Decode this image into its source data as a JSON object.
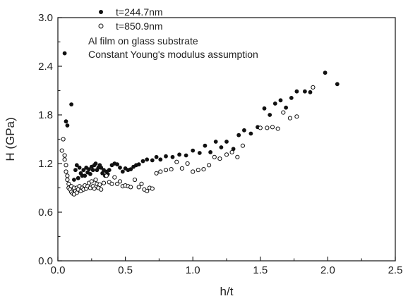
{
  "chart_data": {
    "type": "scatter",
    "xlabel": "h/t",
    "ylabel": "H (GPa)",
    "xlim": [
      0.0,
      2.5
    ],
    "ylim": [
      0.0,
      3.0
    ],
    "x_ticks": [
      "0.0",
      "0.5",
      "1.0",
      "1.5",
      "2.0",
      "2.5"
    ],
    "y_ticks": [
      "0.0",
      "0.6",
      "1.2",
      "1.8",
      "2.4",
      "3.0"
    ],
    "grid": false,
    "legend_position": "top-left",
    "annotations": [
      "Al film on glass substrate",
      "Constant Young's modulus assumption"
    ],
    "series": [
      {
        "name": "t=244.7nm",
        "marker": "filled-circle",
        "color": "#111111",
        "points": [
          [
            0.05,
            2.56
          ],
          [
            0.06,
            1.72
          ],
          [
            0.07,
            1.67
          ],
          [
            0.1,
            1.93
          ],
          [
            0.12,
            1.0
          ],
          [
            0.13,
            1.12
          ],
          [
            0.14,
            1.18
          ],
          [
            0.15,
            1.02
          ],
          [
            0.16,
            1.15
          ],
          [
            0.17,
            1.08
          ],
          [
            0.18,
            1.05
          ],
          [
            0.19,
            1.12
          ],
          [
            0.2,
            1.05
          ],
          [
            0.21,
            1.15
          ],
          [
            0.22,
            1.09
          ],
          [
            0.23,
            1.13
          ],
          [
            0.24,
            1.07
          ],
          [
            0.25,
            1.16
          ],
          [
            0.26,
            1.12
          ],
          [
            0.27,
            1.18
          ],
          [
            0.28,
            1.2
          ],
          [
            0.29,
            1.12
          ],
          [
            0.3,
            1.15
          ],
          [
            0.31,
            1.18
          ],
          [
            0.32,
            1.15
          ],
          [
            0.33,
            1.08
          ],
          [
            0.34,
            1.12
          ],
          [
            0.35,
            1.05
          ],
          [
            0.36,
            1.1
          ],
          [
            0.37,
            1.07
          ],
          [
            0.38,
            1.12
          ],
          [
            0.4,
            1.18
          ],
          [
            0.42,
            1.2
          ],
          [
            0.44,
            1.19
          ],
          [
            0.46,
            1.15
          ],
          [
            0.48,
            1.1
          ],
          [
            0.5,
            1.14
          ],
          [
            0.52,
            1.12
          ],
          [
            0.54,
            1.13
          ],
          [
            0.56,
            1.16
          ],
          [
            0.58,
            1.18
          ],
          [
            0.6,
            1.19
          ],
          [
            0.63,
            1.23
          ],
          [
            0.66,
            1.25
          ],
          [
            0.7,
            1.24
          ],
          [
            0.73,
            1.28
          ],
          [
            0.76,
            1.25
          ],
          [
            0.8,
            1.29
          ],
          [
            0.85,
            1.28
          ],
          [
            0.9,
            1.31
          ],
          [
            0.95,
            1.3
          ],
          [
            1.0,
            1.36
          ],
          [
            1.05,
            1.33
          ],
          [
            1.09,
            1.42
          ],
          [
            1.13,
            1.34
          ],
          [
            1.17,
            1.47
          ],
          [
            1.21,
            1.4
          ],
          [
            1.25,
            1.47
          ],
          [
            1.3,
            1.38
          ],
          [
            1.34,
            1.55
          ],
          [
            1.38,
            1.61
          ],
          [
            1.43,
            1.57
          ],
          [
            1.48,
            1.65
          ],
          [
            1.53,
            1.88
          ],
          [
            1.57,
            1.8
          ],
          [
            1.61,
            1.94
          ],
          [
            1.65,
            1.98
          ],
          [
            1.69,
            1.89
          ],
          [
            1.73,
            2.01
          ],
          [
            1.77,
            2.09
          ],
          [
            1.83,
            2.09
          ],
          [
            1.87,
            2.08
          ],
          [
            1.98,
            2.32
          ],
          [
            2.07,
            2.18
          ]
        ]
      },
      {
        "name": "t=850.9nm",
        "marker": "open-circle",
        "color": "#111111",
        "points": [
          [
            0.03,
            1.36
          ],
          [
            0.04,
            1.5
          ],
          [
            0.05,
            1.3
          ],
          [
            0.05,
            1.25
          ],
          [
            0.06,
            1.18
          ],
          [
            0.06,
            1.1
          ],
          [
            0.07,
            1.05
          ],
          [
            0.07,
            1.0
          ],
          [
            0.08,
            0.95
          ],
          [
            0.08,
            0.9
          ],
          [
            0.09,
            0.88
          ],
          [
            0.1,
            0.92
          ],
          [
            0.1,
            0.85
          ],
          [
            0.11,
            0.83
          ],
          [
            0.12,
            0.9
          ],
          [
            0.12,
            0.82
          ],
          [
            0.13,
            0.86
          ],
          [
            0.14,
            0.9
          ],
          [
            0.14,
            0.84
          ],
          [
            0.15,
            0.88
          ],
          [
            0.16,
            0.92
          ],
          [
            0.17,
            0.86
          ],
          [
            0.18,
            0.9
          ],
          [
            0.19,
            0.88
          ],
          [
            0.2,
            0.93
          ],
          [
            0.21,
            0.89
          ],
          [
            0.22,
            0.92
          ],
          [
            0.23,
            0.96
          ],
          [
            0.24,
            0.9
          ],
          [
            0.25,
            0.98
          ],
          [
            0.26,
            0.92
          ],
          [
            0.27,
            0.89
          ],
          [
            0.28,
            1.0
          ],
          [
            0.29,
            0.95
          ],
          [
            0.3,
            0.9
          ],
          [
            0.31,
            0.94
          ],
          [
            0.32,
            0.88
          ],
          [
            0.34,
            0.96
          ],
          [
            0.36,
            1.05
          ],
          [
            0.38,
            0.97
          ],
          [
            0.4,
            0.95
          ],
          [
            0.42,
            1.03
          ],
          [
            0.44,
            0.95
          ],
          [
            0.46,
            0.98
          ],
          [
            0.48,
            0.92
          ],
          [
            0.5,
            0.93
          ],
          [
            0.52,
            0.92
          ],
          [
            0.54,
            0.91
          ],
          [
            0.57,
            1.0
          ],
          [
            0.6,
            0.91
          ],
          [
            0.62,
            0.95
          ],
          [
            0.64,
            0.88
          ],
          [
            0.66,
            0.86
          ],
          [
            0.68,
            0.9
          ],
          [
            0.7,
            0.89
          ],
          [
            0.73,
            1.08
          ],
          [
            0.76,
            1.1
          ],
          [
            0.8,
            1.12
          ],
          [
            0.84,
            1.13
          ],
          [
            0.88,
            1.22
          ],
          [
            0.92,
            1.14
          ],
          [
            0.96,
            1.2
          ],
          [
            1.0,
            1.1
          ],
          [
            1.04,
            1.12
          ],
          [
            1.08,
            1.13
          ],
          [
            1.12,
            1.18
          ],
          [
            1.16,
            1.28
          ],
          [
            1.2,
            1.26
          ],
          [
            1.25,
            1.31
          ],
          [
            1.29,
            1.34
          ],
          [
            1.33,
            1.28
          ],
          [
            1.37,
            1.42
          ],
          [
            1.5,
            1.64
          ],
          [
            1.55,
            1.64
          ],
          [
            1.59,
            1.65
          ],
          [
            1.63,
            1.63
          ],
          [
            1.67,
            1.83
          ],
          [
            1.72,
            1.76
          ],
          [
            1.77,
            1.78
          ],
          [
            1.89,
            2.14
          ]
        ]
      }
    ]
  }
}
